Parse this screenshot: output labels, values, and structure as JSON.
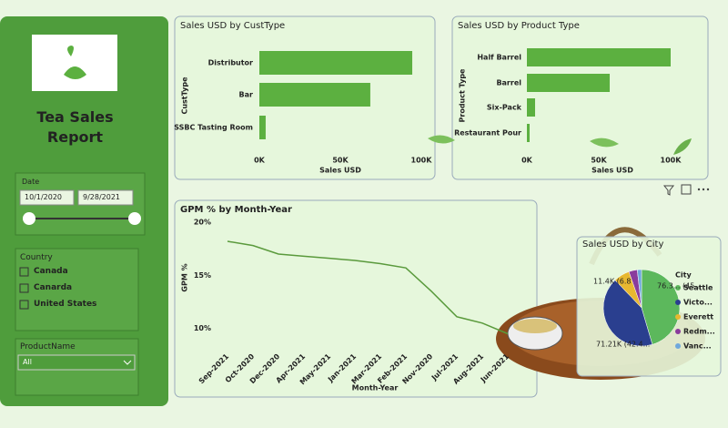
{
  "sidebar": {
    "title": "Tea Sales Report",
    "date_label": "Date",
    "date_start": "10/1/2020",
    "date_end": "9/28/2021",
    "country_label": "Country",
    "countries": [
      "Canada",
      "Canarda",
      "United States"
    ],
    "product_label": "ProductName",
    "product_value": "All"
  },
  "chart_data": [
    {
      "type": "hbar",
      "title": "Sales USD by CustType",
      "y_label": "CustType",
      "x_label": "Sales USD",
      "categories": [
        "Distributor",
        "Bar",
        "SSBC Tasting Room"
      ],
      "values": [
        94400,
        68500,
        3900
      ],
      "color": "#5cb040",
      "xlim": [
        0,
        100000
      ],
      "xticks": [
        {
          "value": 0,
          "label": "0K"
        },
        {
          "value": 50000,
          "label": "50K"
        },
        {
          "value": 100000,
          "label": "100K"
        }
      ]
    },
    {
      "type": "hbar",
      "title": "Sales USD by Product Type",
      "y_label": "Product Type",
      "x_label": "Sales USD",
      "categories": [
        "Half Barrel",
        "Barrel",
        "Six-Pack",
        "Restaurant Pour"
      ],
      "values": [
        100000,
        57600,
        5700,
        1900
      ],
      "color": "#5cb040",
      "xlim": [
        0,
        100000
      ],
      "xticks": [
        {
          "value": 0,
          "label": "0K"
        },
        {
          "value": 50000,
          "label": "50K"
        },
        {
          "value": 100000,
          "label": "100K"
        }
      ]
    },
    {
      "type": "line",
      "title": "GPM % by Month-Year",
      "y_label": "GPM %",
      "x_label": "Month-Year",
      "categories": [
        "Sep-2021",
        "Oct-2020",
        "Dec-2020",
        "Apr-2021",
        "May-2021",
        "Jan-2021",
        "Mar-2021",
        "Feb-2021",
        "Nov-2020",
        "Jul-2021",
        "Aug-2021",
        "Jun-2021"
      ],
      "values": [
        18.2,
        17.8,
        17.0,
        16.8,
        16.6,
        16.4,
        16.1,
        15.7,
        13.5,
        11.1,
        10.5,
        9.5
      ],
      "color": "#5a9a3c",
      "ylim": [
        8,
        20
      ],
      "yticks": [
        {
          "value": 10,
          "label": "10%"
        },
        {
          "value": 15,
          "label": "15%"
        },
        {
          "value": 20,
          "label": "20%"
        }
      ]
    },
    {
      "type": "pie",
      "title": "Sales USD by City",
      "legend_title": "City",
      "categories": [
        "Seattle",
        "Victo...",
        "Everett",
        "Redm...",
        "Vanc..."
      ],
      "values": [
        76.3,
        71.21,
        11.4,
        6,
        3
      ],
      "value_labels": [
        "76.3... (45...",
        "71.21K (42.4...",
        "11.4K (6.8%)",
        null,
        null
      ],
      "colors": [
        "#5cb85c",
        "#2a3f8f",
        "#e8b830",
        "#8a3c9c",
        "#6fa8dc"
      ]
    }
  ]
}
